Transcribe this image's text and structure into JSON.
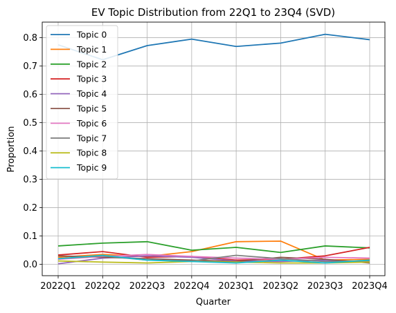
{
  "chart_data": {
    "type": "line",
    "title": "EV Topic Distribution from 22Q1 to 23Q4 (SVD)",
    "xlabel": "Quarter",
    "ylabel": "Proportion",
    "categories": [
      "2022Q1",
      "2022Q2",
      "2022Q3",
      "2022Q4",
      "2023Q1",
      "2023Q2",
      "2023Q3",
      "2023Q4"
    ],
    "ylim": [
      -0.04,
      0.855
    ],
    "yticks": [
      "0.0",
      "0.1",
      "0.2",
      "0.3",
      "0.4",
      "0.5",
      "0.6",
      "0.7",
      "0.8"
    ],
    "grid": true,
    "legend_position": "top-left",
    "series": [
      {
        "name": "Topic 0",
        "color": "#1f77b4",
        "values": [
          0.775,
          0.722,
          0.772,
          0.795,
          0.769,
          0.781,
          0.812,
          0.793
        ]
      },
      {
        "name": "Topic 1",
        "color": "#ff7f0e",
        "values": [
          0.025,
          0.035,
          0.028,
          0.045,
          0.08,
          0.082,
          0.015,
          0.018
        ]
      },
      {
        "name": "Topic 2",
        "color": "#2ca02c",
        "values": [
          0.065,
          0.075,
          0.08,
          0.05,
          0.06,
          0.042,
          0.065,
          0.058
        ]
      },
      {
        "name": "Topic 3",
        "color": "#d62728",
        "values": [
          0.033,
          0.045,
          0.025,
          0.028,
          0.015,
          0.018,
          0.03,
          0.06
        ]
      },
      {
        "name": "Topic 4",
        "color": "#9467bd",
        "values": [
          0.002,
          0.022,
          0.03,
          0.025,
          0.012,
          0.01,
          0.015,
          0.008
        ]
      },
      {
        "name": "Topic 5",
        "color": "#8c564b",
        "values": [
          0.03,
          0.025,
          0.02,
          0.015,
          0.01,
          0.025,
          0.018,
          0.005
        ]
      },
      {
        "name": "Topic 6",
        "color": "#e377c2",
        "values": [
          0.018,
          0.028,
          0.035,
          0.028,
          0.022,
          0.018,
          0.025,
          0.022
        ]
      },
      {
        "name": "Topic 7",
        "color": "#7f7f7f",
        "values": [
          0.02,
          0.03,
          0.015,
          0.012,
          0.032,
          0.02,
          0.01,
          0.012
        ]
      },
      {
        "name": "Topic 8",
        "color": "#bcbd22",
        "values": [
          0.012,
          0.008,
          0.005,
          0.01,
          0.008,
          0.005,
          0.005,
          0.008
        ]
      },
      {
        "name": "Topic 9",
        "color": "#17becf",
        "values": [
          0.02,
          0.032,
          0.015,
          0.01,
          0.005,
          0.015,
          0.005,
          0.015
        ]
      }
    ]
  }
}
